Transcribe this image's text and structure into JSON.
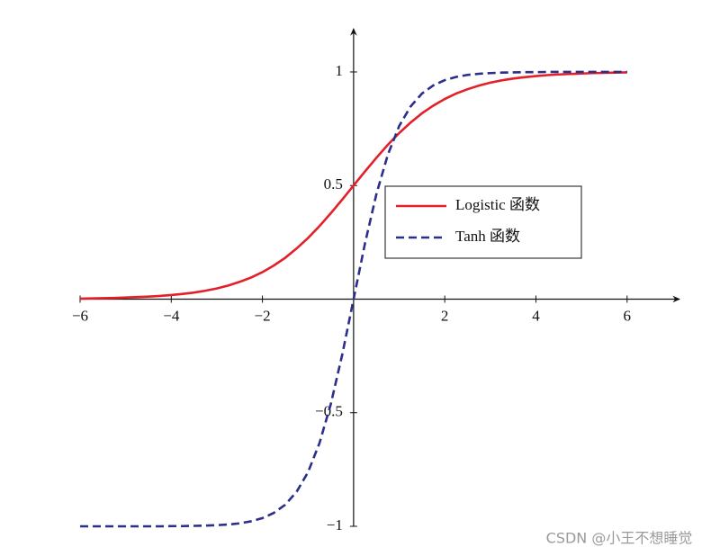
{
  "chart_data": {
    "type": "line",
    "x": [
      -6,
      -5.75,
      -5.5,
      -5.25,
      -5,
      -4.75,
      -4.5,
      -4.25,
      -4,
      -3.75,
      -3.5,
      -3.25,
      -3,
      -2.75,
      -2.5,
      -2.25,
      -2,
      -1.75,
      -1.5,
      -1.25,
      -1,
      -0.75,
      -0.5,
      -0.25,
      0,
      0.25,
      0.5,
      0.75,
      1,
      1.25,
      1.5,
      1.75,
      2,
      2.25,
      2.5,
      2.75,
      3,
      3.25,
      3.5,
      3.75,
      4,
      4.25,
      4.5,
      4.75,
      5,
      5.25,
      5.5,
      5.75,
      6
    ],
    "series": [
      {
        "name": "Logistic 函数",
        "color": "#e3202a",
        "dash": false,
        "values": [
          0.002,
          0.003,
          0.004,
          0.005,
          0.007,
          0.009,
          0.011,
          0.014,
          0.018,
          0.023,
          0.029,
          0.037,
          0.047,
          0.06,
          0.076,
          0.095,
          0.119,
          0.148,
          0.182,
          0.223,
          0.269,
          0.321,
          0.378,
          0.438,
          0.5,
          0.562,
          0.622,
          0.679,
          0.731,
          0.777,
          0.818,
          0.852,
          0.881,
          0.905,
          0.924,
          0.94,
          0.953,
          0.963,
          0.971,
          0.977,
          0.982,
          0.986,
          0.989,
          0.991,
          0.993,
          0.995,
          0.996,
          0.997,
          0.998
        ]
      },
      {
        "name": "Tanh 函数",
        "color": "#2b2f8a",
        "dash": true,
        "values": [
          -1,
          -1,
          -1,
          -1,
          -1,
          -1,
          -1,
          -1,
          -0.999,
          -0.999,
          -0.998,
          -0.997,
          -0.995,
          -0.992,
          -0.987,
          -0.978,
          -0.964,
          -0.941,
          -0.905,
          -0.848,
          -0.762,
          -0.635,
          -0.462,
          -0.245,
          0,
          0.245,
          0.462,
          0.635,
          0.762,
          0.848,
          0.905,
          0.941,
          0.964,
          0.978,
          0.987,
          0.992,
          0.995,
          0.997,
          0.998,
          0.999,
          0.999,
          1,
          1,
          1,
          1,
          1,
          1,
          1,
          1
        ]
      }
    ],
    "xlim": [
      -6,
      7.15
    ],
    "ylim": [
      -1,
      1.19
    ],
    "xticks": [
      {
        "value": -6,
        "label": "−6"
      },
      {
        "value": -4,
        "label": "−4"
      },
      {
        "value": -2,
        "label": "−2"
      },
      2,
      4,
      6
    ],
    "yticks": [
      {
        "value": -1,
        "label": "−1"
      },
      {
        "value": -0.5,
        "label": "−0.5"
      },
      0.5,
      1
    ],
    "grid": false,
    "legend_position": "right",
    "watermark": "CSDN @小王不想睡觉"
  }
}
